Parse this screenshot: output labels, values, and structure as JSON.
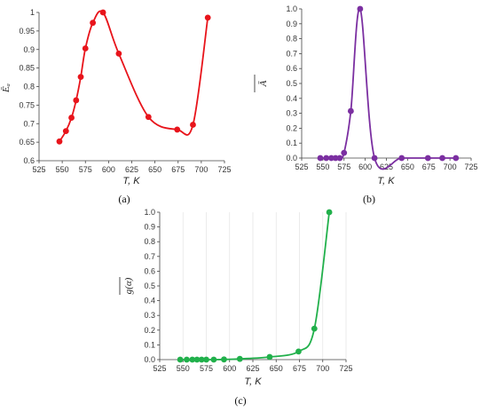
{
  "chart_data": [
    {
      "panel": "(a)",
      "type": "line",
      "color": "#e8141b",
      "xlabel": "T, K",
      "ylabel": "Ēₐ",
      "xlim": [
        525,
        725
      ],
      "xticks": [
        525,
        550,
        575,
        600,
        625,
        650,
        675,
        700,
        725
      ],
      "ylim": [
        0.6,
        1.0
      ],
      "yticks": [
        0.6,
        0.65,
        0.7,
        0.75,
        0.8,
        0.85,
        0.9,
        0.95,
        1.0
      ],
      "ytick_labels": [
        "0.6",
        "0.65",
        "0.7",
        "0.75",
        "0.8",
        "0.85",
        "0.9",
        "0.95",
        "1"
      ],
      "grid": false,
      "points": [
        [
          547,
          0.652
        ],
        [
          554,
          0.68
        ],
        [
          560,
          0.716
        ],
        [
          565,
          0.763
        ],
        [
          570,
          0.826
        ],
        [
          575,
          0.903
        ],
        [
          583,
          0.972
        ],
        [
          594,
          1.0
        ],
        [
          611,
          0.889
        ],
        [
          643,
          0.718
        ],
        [
          674,
          0.684
        ],
        [
          691,
          0.697
        ],
        [
          707,
          0.986
        ]
      ]
    },
    {
      "panel": "(b)",
      "type": "line",
      "color": "#7b2fa1",
      "xlabel": "T, K",
      "ylabel": "Ā",
      "xlim": [
        525,
        725
      ],
      "xticks": [
        525,
        550,
        575,
        600,
        625,
        650,
        675,
        700,
        725
      ],
      "ylim": [
        0,
        1.0
      ],
      "yticks": [
        0,
        0.1,
        0.2,
        0.3,
        0.4,
        0.5,
        0.6,
        0.7,
        0.8,
        0.9,
        1.0
      ],
      "ytick_labels": [
        "0.0",
        "0.1",
        "0.2",
        "0.3",
        "0.4",
        "0.5",
        "0.6",
        "0.7",
        "0.8",
        "0.9",
        "1.0"
      ],
      "grid": false,
      "points": [
        [
          547,
          0.0
        ],
        [
          554,
          0.0
        ],
        [
          560,
          0.0
        ],
        [
          565,
          0.0
        ],
        [
          570,
          0.0
        ],
        [
          575,
          0.035
        ],
        [
          583,
          0.315
        ],
        [
          594,
          1.0
        ],
        [
          611,
          0.0
        ],
        [
          643,
          0.0
        ],
        [
          674,
          0.0
        ],
        [
          691,
          0.0
        ],
        [
          707,
          0.0
        ]
      ]
    },
    {
      "panel": "(c)",
      "type": "line",
      "color": "#21b04b",
      "xlabel": "T, K",
      "ylabel": "g(α)",
      "xlim": [
        525,
        725
      ],
      "xticks": [
        525,
        550,
        575,
        600,
        625,
        650,
        675,
        700,
        725
      ],
      "ylim": [
        0,
        1.0
      ],
      "yticks": [
        0,
        0.1,
        0.2,
        0.3,
        0.4,
        0.5,
        0.6,
        0.7,
        0.8,
        0.9,
        1.0
      ],
      "ytick_labels": [
        "0.0",
        "0.1",
        "0.2",
        "0.3",
        "0.4",
        "0.5",
        "0.6",
        "0.7",
        "0.8",
        "0.9",
        "1.0"
      ],
      "grid": true,
      "points": [
        [
          547,
          0.0
        ],
        [
          554,
          0.0
        ],
        [
          560,
          0.0
        ],
        [
          565,
          0.0
        ],
        [
          570,
          0.0
        ],
        [
          575,
          0.0
        ],
        [
          583,
          0.0
        ],
        [
          594,
          0.001
        ],
        [
          611,
          0.005
        ],
        [
          643,
          0.018
        ],
        [
          674,
          0.055
        ],
        [
          691,
          0.21
        ],
        [
          707,
          1.0
        ]
      ]
    }
  ]
}
